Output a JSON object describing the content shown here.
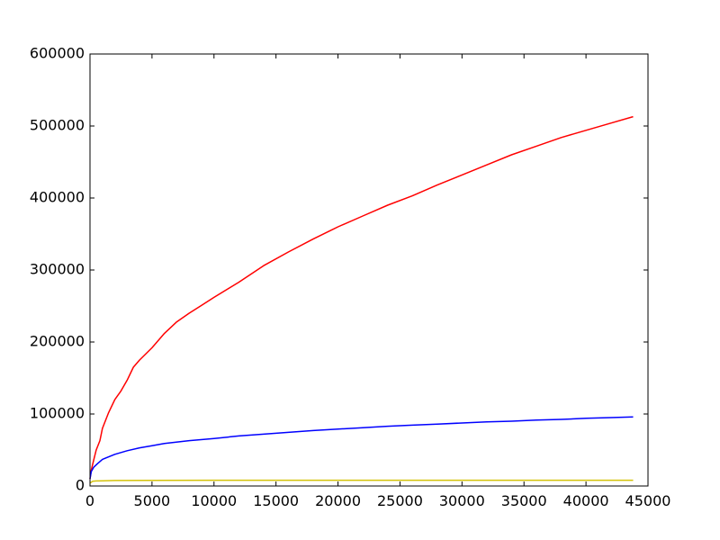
{
  "chart_data": {
    "type": "line",
    "title": "",
    "xlabel": "",
    "ylabel": "",
    "xlim": [
      0,
      45000
    ],
    "ylim": [
      0,
      600000
    ],
    "x_ticks": [
      0,
      5000,
      10000,
      15000,
      20000,
      25000,
      30000,
      35000,
      40000,
      45000
    ],
    "y_ticks": [
      0,
      100000,
      200000,
      300000,
      400000,
      500000,
      600000
    ],
    "x_tick_labels": [
      "0",
      "5000",
      "10000",
      "15000",
      "20000",
      "25000",
      "30000",
      "35000",
      "40000",
      "45000"
    ],
    "y_tick_labels": [
      "0",
      "100000",
      "200000",
      "300000",
      "400000",
      "500000",
      "600000"
    ],
    "grid": false,
    "legend": null,
    "series": [
      {
        "color": "#ff0000",
        "x": [
          0,
          100,
          300,
          500,
          800,
          1000,
          1500,
          2000,
          2500,
          3000,
          3500,
          4000,
          5000,
          6000,
          7000,
          8000,
          9000,
          10000,
          12000,
          14000,
          16000,
          18000,
          20000,
          22000,
          24000,
          26000,
          28000,
          30000,
          32000,
          34000,
          36000,
          38000,
          40000,
          42000,
          43800
        ],
        "values": [
          10000,
          22000,
          36000,
          50000,
          63000,
          80000,
          102000,
          120000,
          132000,
          147000,
          165000,
          175000,
          192000,
          212000,
          228000,
          240000,
          251000,
          262000,
          283000,
          306000,
          325000,
          343000,
          360000,
          375000,
          390000,
          403000,
          418000,
          432000,
          446000,
          460000,
          472000,
          484000,
          494000,
          504000,
          513000
        ]
      },
      {
        "color": "#0000ff",
        "x": [
          0,
          100,
          300,
          600,
          1000,
          2000,
          3000,
          4000,
          5000,
          6000,
          8000,
          10000,
          12000,
          14000,
          16000,
          18000,
          20000,
          22000,
          24000,
          26000,
          28000,
          30000,
          32000,
          34000,
          36000,
          38000,
          40000,
          42000,
          43800
        ],
        "values": [
          10000,
          20000,
          26000,
          31000,
          37000,
          44000,
          49000,
          53000,
          56000,
          59000,
          63000,
          66000,
          69500,
          72000,
          74500,
          77000,
          79000,
          81000,
          83000,
          84500,
          86000,
          87500,
          89000,
          90000,
          91500,
          92500,
          94000,
          95000,
          96000
        ]
      },
      {
        "color": "#d4c20a",
        "x": [
          0,
          200,
          500,
          1000,
          2000,
          5000,
          10000,
          20000,
          30000,
          40000,
          43800
        ],
        "values": [
          4000,
          6500,
          7000,
          7300,
          7600,
          7900,
          8000,
          8000,
          8000,
          8000,
          8000
        ]
      }
    ]
  }
}
